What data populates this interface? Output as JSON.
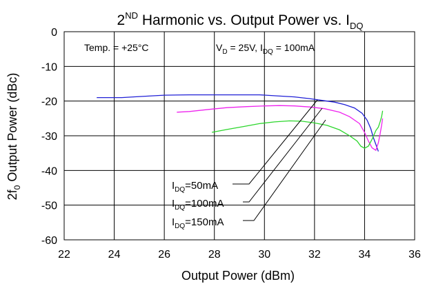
{
  "chart_data": {
    "type": "line",
    "title": {
      "base": "2",
      "sup": "ND",
      "rest": " Harmonic vs. Output Power vs. I",
      "sub": "DQ"
    },
    "xlabel": "Output Power (dBm)",
    "ylabel": {
      "pre": "2f",
      "sub": "0",
      "post": " Output Power (dBc)"
    },
    "xlim": [
      22,
      36
    ],
    "ylim": [
      -60,
      0
    ],
    "xticks": [
      "22",
      "24",
      "26",
      "28",
      "30",
      "32",
      "34",
      "36"
    ],
    "yticks": [
      "0",
      "-10",
      "-20",
      "-30",
      "-40",
      "-50",
      "-60"
    ],
    "grid": true,
    "annotations": {
      "temp": "Temp. = +25°C",
      "cond": {
        "a": "V",
        "a_sub": "D",
        "b": " = 25V, I",
        "b_sub": "DQ",
        "c": " = 100mA"
      }
    },
    "series": [
      {
        "name": "I_DQ=50mA",
        "label": {
          "pre": "I",
          "sub": "DQ",
          "post": "=50mA"
        },
        "color": "#1f1fd6",
        "x": [
          23.3,
          24.3,
          25.0,
          26.0,
          27.0,
          28.0,
          29.0,
          29.8,
          30.5,
          31.2,
          31.8,
          32.3,
          32.8,
          33.2,
          33.6,
          33.9,
          34.1,
          34.25,
          34.35,
          34.45,
          34.55
        ],
        "y": [
          -19.0,
          -19.0,
          -18.7,
          -18.3,
          -18.2,
          -18.2,
          -18.2,
          -18.2,
          -18.5,
          -18.8,
          -19.3,
          -19.8,
          -20.3,
          -21.0,
          -22.0,
          -23.5,
          -25.5,
          -28.0,
          -30.5,
          -32.5,
          -34.5
        ]
      },
      {
        "name": "I_DQ=100mA",
        "label": {
          "pre": "I",
          "sub": "DQ",
          "post": "=100mA"
        },
        "color": "#ee22ee",
        "x": [
          26.5,
          27.0,
          27.8,
          28.5,
          29.3,
          30.0,
          30.6,
          31.2,
          31.8,
          32.4,
          33.0,
          33.4,
          33.8,
          34.0,
          34.15,
          34.3,
          34.45,
          34.55,
          34.62,
          34.68,
          34.72
        ],
        "y": [
          -23.2,
          -23.0,
          -22.4,
          -21.9,
          -21.6,
          -21.4,
          -21.3,
          -21.4,
          -21.7,
          -22.2,
          -23.2,
          -24.5,
          -26.5,
          -29.0,
          -31.5,
          -33.5,
          -34.2,
          -32.0,
          -29.5,
          -27.0,
          -25.0
        ]
      },
      {
        "name": "I_DQ=150mA",
        "label": {
          "pre": "I",
          "sub": "DQ",
          "post": "=150mA"
        },
        "color": "#2bd62b",
        "x": [
          27.9,
          28.5,
          29.2,
          29.8,
          30.4,
          31.0,
          31.5,
          32.0,
          32.5,
          33.0,
          33.4,
          33.7,
          33.85,
          34.0,
          34.15,
          34.3,
          34.45,
          34.55,
          34.62,
          34.68,
          34.72
        ],
        "y": [
          -29.0,
          -28.2,
          -27.3,
          -26.5,
          -26.0,
          -25.7,
          -25.8,
          -26.3,
          -27.0,
          -28.3,
          -30.0,
          -31.5,
          -33.0,
          -33.6,
          -33.0,
          -31.0,
          -28.5,
          -27.5,
          -26.0,
          -24.5,
          -22.8
        ]
      }
    ]
  }
}
